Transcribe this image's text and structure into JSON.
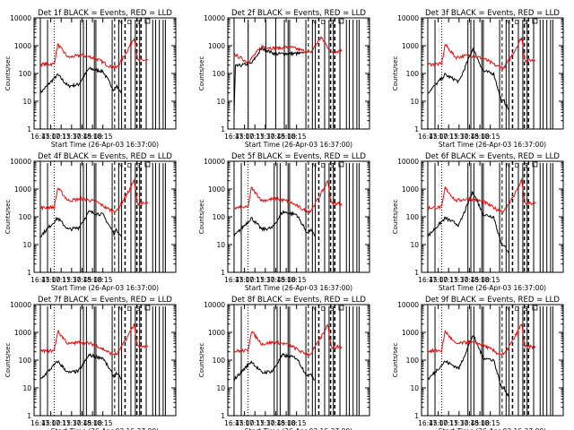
{
  "colors": {
    "events": "#000000",
    "lld": "#e01010",
    "axis": "#000000",
    "background": "#ffffff"
  },
  "common": {
    "ylabel": "Counts/sec",
    "xlabel": "Start Time (26-Apr-03 16:37:00)",
    "x_ticks": [
      "16:45",
      "17:00",
      "17:15",
      "17:30",
      "17:45",
      "18:00",
      "18:15"
    ],
    "y_ticks": [
      "1",
      "10",
      "100",
      "1000",
      "10000"
    ],
    "y_scale": "log",
    "ylim": [
      1,
      10000
    ],
    "markers": [
      "N",
      "D",
      "S"
    ]
  },
  "chart_data": [
    {
      "type": "line",
      "title": "Det 1f BLACK = Events, RED = LLD",
      "series": [
        {
          "name": "Events",
          "x_min": [
            [
              0,
              20
            ],
            [
              25,
              90
            ],
            [
              40,
              35
            ],
            [
              55,
              40
            ],
            [
              70,
              150
            ],
            [
              90,
              120
            ],
            [
              106,
              25
            ],
            [
              110,
              35
            ],
            [
              116,
              20
            ]
          ]
        },
        {
          "name": "LLD",
          "x_min": [
            [
              0,
              210
            ],
            [
              20,
              220
            ],
            [
              25,
              1100
            ],
            [
              40,
              380
            ],
            [
              60,
              450
            ],
            [
              80,
              350
            ],
            [
              100,
              180
            ],
            [
              110,
              160
            ],
            [
              125,
              650
            ],
            [
              135,
              2000
            ],
            [
              140,
              300
            ],
            [
              155,
              300
            ]
          ]
        }
      ],
      "solid_verticals_min": [
        0,
        10,
        57,
        62,
        66,
        77,
        80,
        103,
        112,
        117,
        130,
        136,
        143,
        152,
        161,
        166,
        171,
        176,
        180
      ],
      "dotted_verticals_min": [
        -9,
        20
      ],
      "dashed_verticals_min": [
        107,
        122,
        139,
        145
      ]
    },
    {
      "type": "line",
      "title": "Det 2f BLACK = Events, RED = LLD",
      "series": [
        {
          "name": "Events",
          "x_min": [
            [
              0,
              3
            ],
            [
              2,
              180
            ],
            [
              25,
              230
            ],
            [
              40,
              800
            ],
            [
              60,
              500
            ],
            [
              80,
              520
            ],
            [
              100,
              520
            ]
          ]
        },
        {
          "name": "LLD",
          "x_min": [
            [
              0,
              500
            ],
            [
              20,
              250
            ],
            [
              40,
              950
            ],
            [
              60,
              800
            ],
            [
              80,
              900
            ],
            [
              100,
              650
            ],
            [
              110,
              550
            ],
            [
              125,
              2000
            ],
            [
              140,
              600
            ],
            [
              155,
              650
            ]
          ]
        }
      ],
      "solid_verticals_min": [
        0,
        20,
        45,
        60,
        72,
        77,
        80,
        103,
        112,
        117,
        130,
        136,
        143,
        152,
        161,
        166,
        171,
        176,
        180
      ],
      "dotted_verticals_min": [
        -9,
        20
      ],
      "dashed_verticals_min": [
        107,
        122,
        139,
        145
      ]
    },
    {
      "type": "line",
      "title": "Det 3f BLACK = Events, RED = LLD",
      "series": [
        {
          "name": "Events",
          "x_min": [
            [
              0,
              20
            ],
            [
              25,
              90
            ],
            [
              45,
              50
            ],
            [
              65,
              800
            ],
            [
              80,
              120
            ],
            [
              95,
              100
            ],
            [
              106,
              10
            ],
            [
              110,
              10
            ],
            [
              116,
              5
            ]
          ]
        },
        {
          "name": "LLD",
          "x_min": [
            [
              0,
              210
            ],
            [
              20,
              220
            ],
            [
              25,
              1100
            ],
            [
              40,
              380
            ],
            [
              60,
              450
            ],
            [
              80,
              350
            ],
            [
              100,
              180
            ],
            [
              110,
              160
            ],
            [
              125,
              650
            ],
            [
              135,
              2000
            ],
            [
              140,
              300
            ],
            [
              155,
              300
            ]
          ]
        }
      ],
      "solid_verticals_min": [
        0,
        10,
        57,
        62,
        66,
        77,
        80,
        103,
        112,
        117,
        130,
        136,
        143,
        152,
        161,
        166,
        171,
        176,
        180
      ],
      "dotted_verticals_min": [
        -9,
        20
      ],
      "dashed_verticals_min": [
        107,
        122,
        139,
        145
      ]
    },
    {
      "type": "line",
      "title": "Det 4f BLACK = Events, RED = LLD",
      "series": [
        {
          "name": "Events",
          "x_min": [
            [
              0,
              20
            ],
            [
              25,
              90
            ],
            [
              40,
              35
            ],
            [
              55,
              40
            ],
            [
              70,
              150
            ],
            [
              90,
              120
            ],
            [
              106,
              25
            ],
            [
              110,
              35
            ],
            [
              116,
              20
            ]
          ]
        },
        {
          "name": "LLD",
          "x_min": [
            [
              0,
              210
            ],
            [
              20,
              220
            ],
            [
              25,
              1100
            ],
            [
              40,
              380
            ],
            [
              60,
              450
            ],
            [
              80,
              350
            ],
            [
              100,
              180
            ],
            [
              110,
              160
            ],
            [
              125,
              650
            ],
            [
              135,
              2000
            ],
            [
              140,
              300
            ],
            [
              155,
              300
            ]
          ]
        }
      ],
      "solid_verticals_min": [
        0,
        10,
        57,
        62,
        66,
        77,
        80,
        103,
        112,
        117,
        130,
        136,
        143,
        152,
        161,
        166,
        171,
        176,
        180
      ],
      "dotted_verticals_min": [
        -9,
        20
      ],
      "dashed_verticals_min": [
        107,
        122,
        139,
        145
      ]
    },
    {
      "type": "line",
      "title": "Det 5f BLACK = Events, RED = LLD",
      "series": [
        {
          "name": "Events",
          "x_min": [
            [
              0,
              20
            ],
            [
              25,
              90
            ],
            [
              40,
              35
            ],
            [
              55,
              40
            ],
            [
              70,
              150
            ],
            [
              90,
              120
            ],
            [
              106,
              25
            ],
            [
              110,
              35
            ],
            [
              116,
              20
            ]
          ]
        },
        {
          "name": "LLD",
          "x_min": [
            [
              0,
              210
            ],
            [
              20,
              220
            ],
            [
              25,
              1100
            ],
            [
              40,
              380
            ],
            [
              60,
              450
            ],
            [
              80,
              350
            ],
            [
              100,
              180
            ],
            [
              110,
              160
            ],
            [
              125,
              650
            ],
            [
              135,
              2000
            ],
            [
              140,
              300
            ],
            [
              155,
              300
            ]
          ]
        }
      ],
      "solid_verticals_min": [
        0,
        10,
        57,
        62,
        66,
        77,
        80,
        103,
        112,
        117,
        130,
        136,
        143,
        152,
        161,
        166,
        171,
        176,
        180
      ],
      "dotted_verticals_min": [
        -9,
        20
      ],
      "dashed_verticals_min": [
        107,
        122,
        139,
        145
      ]
    },
    {
      "type": "line",
      "title": "Det 6f BLACK = Events, RED = LLD",
      "series": [
        {
          "name": "Events",
          "x_min": [
            [
              0,
              20
            ],
            [
              25,
              90
            ],
            [
              45,
              50
            ],
            [
              65,
              800
            ],
            [
              80,
              120
            ],
            [
              95,
              100
            ],
            [
              106,
              10
            ],
            [
              110,
              10
            ],
            [
              116,
              5
            ]
          ]
        },
        {
          "name": "LLD",
          "x_min": [
            [
              0,
              210
            ],
            [
              20,
              220
            ],
            [
              25,
              1100
            ],
            [
              40,
              380
            ],
            [
              60,
              450
            ],
            [
              80,
              350
            ],
            [
              100,
              180
            ],
            [
              110,
              160
            ],
            [
              125,
              650
            ],
            [
              135,
              2000
            ],
            [
              140,
              300
            ],
            [
              155,
              300
            ]
          ]
        }
      ],
      "solid_verticals_min": [
        0,
        10,
        57,
        62,
        66,
        77,
        80,
        103,
        112,
        117,
        130,
        136,
        143,
        152,
        161,
        166,
        171,
        176,
        180
      ],
      "dotted_verticals_min": [
        -9,
        20
      ],
      "dashed_verticals_min": [
        107,
        122,
        139,
        145
      ]
    },
    {
      "type": "line",
      "title": "Det 7f BLACK = Events, RED = LLD",
      "series": [
        {
          "name": "Events",
          "x_min": [
            [
              0,
              20
            ],
            [
              25,
              90
            ],
            [
              40,
              35
            ],
            [
              55,
              40
            ],
            [
              70,
              150
            ],
            [
              90,
              120
            ],
            [
              106,
              25
            ],
            [
              110,
              35
            ],
            [
              116,
              20
            ]
          ]
        },
        {
          "name": "LLD",
          "x_min": [
            [
              0,
              210
            ],
            [
              20,
              220
            ],
            [
              25,
              1100
            ],
            [
              40,
              380
            ],
            [
              60,
              450
            ],
            [
              80,
              350
            ],
            [
              100,
              180
            ],
            [
              110,
              160
            ],
            [
              125,
              650
            ],
            [
              135,
              2000
            ],
            [
              140,
              300
            ],
            [
              155,
              300
            ]
          ]
        }
      ],
      "solid_verticals_min": [
        0,
        10,
        57,
        62,
        66,
        77,
        80,
        103,
        112,
        117,
        130,
        136,
        143,
        152,
        161,
        166,
        171,
        176,
        180
      ],
      "dotted_verticals_min": [
        -9,
        20
      ],
      "dashed_verticals_min": [
        107,
        122,
        139,
        145
      ]
    },
    {
      "type": "line",
      "title": "Det 8f BLACK = Events, RED = LLD",
      "series": [
        {
          "name": "Events",
          "x_min": [
            [
              0,
              20
            ],
            [
              25,
              90
            ],
            [
              40,
              35
            ],
            [
              55,
              40
            ],
            [
              70,
              150
            ],
            [
              90,
              120
            ],
            [
              106,
              25
            ],
            [
              110,
              35
            ],
            [
              116,
              20
            ]
          ]
        },
        {
          "name": "LLD",
          "x_min": [
            [
              0,
              210
            ],
            [
              20,
              220
            ],
            [
              25,
              1100
            ],
            [
              40,
              380
            ],
            [
              60,
              450
            ],
            [
              80,
              350
            ],
            [
              100,
              180
            ],
            [
              110,
              160
            ],
            [
              125,
              650
            ],
            [
              135,
              2000
            ],
            [
              140,
              300
            ],
            [
              155,
              300
            ]
          ]
        }
      ],
      "solid_verticals_min": [
        0,
        10,
        57,
        62,
        66,
        77,
        80,
        103,
        112,
        117,
        130,
        136,
        143,
        152,
        161,
        166,
        171,
        176,
        180
      ],
      "dotted_verticals_min": [
        -9,
        20
      ],
      "dashed_verticals_min": [
        107,
        122,
        139,
        145
      ]
    },
    {
      "type": "line",
      "title": "Det 9f BLACK = Events, RED = LLD",
      "series": [
        {
          "name": "Events",
          "x_min": [
            [
              0,
              20
            ],
            [
              25,
              90
            ],
            [
              45,
              50
            ],
            [
              65,
              800
            ],
            [
              80,
              120
            ],
            [
              95,
              100
            ],
            [
              106,
              10
            ],
            [
              110,
              10
            ],
            [
              116,
              5
            ]
          ]
        },
        {
          "name": "LLD",
          "x_min": [
            [
              0,
              210
            ],
            [
              20,
              220
            ],
            [
              25,
              1100
            ],
            [
              40,
              380
            ],
            [
              60,
              450
            ],
            [
              80,
              350
            ],
            [
              100,
              180
            ],
            [
              110,
              160
            ],
            [
              125,
              650
            ],
            [
              135,
              2000
            ],
            [
              140,
              300
            ],
            [
              155,
              300
            ]
          ]
        }
      ],
      "solid_verticals_min": [
        0,
        10,
        57,
        62,
        66,
        77,
        80,
        103,
        112,
        117,
        130,
        136,
        143,
        152,
        161,
        166,
        171,
        176,
        180
      ],
      "dotted_verticals_min": [
        -9,
        20
      ],
      "dashed_verticals_min": [
        107,
        122,
        139,
        145
      ]
    }
  ]
}
